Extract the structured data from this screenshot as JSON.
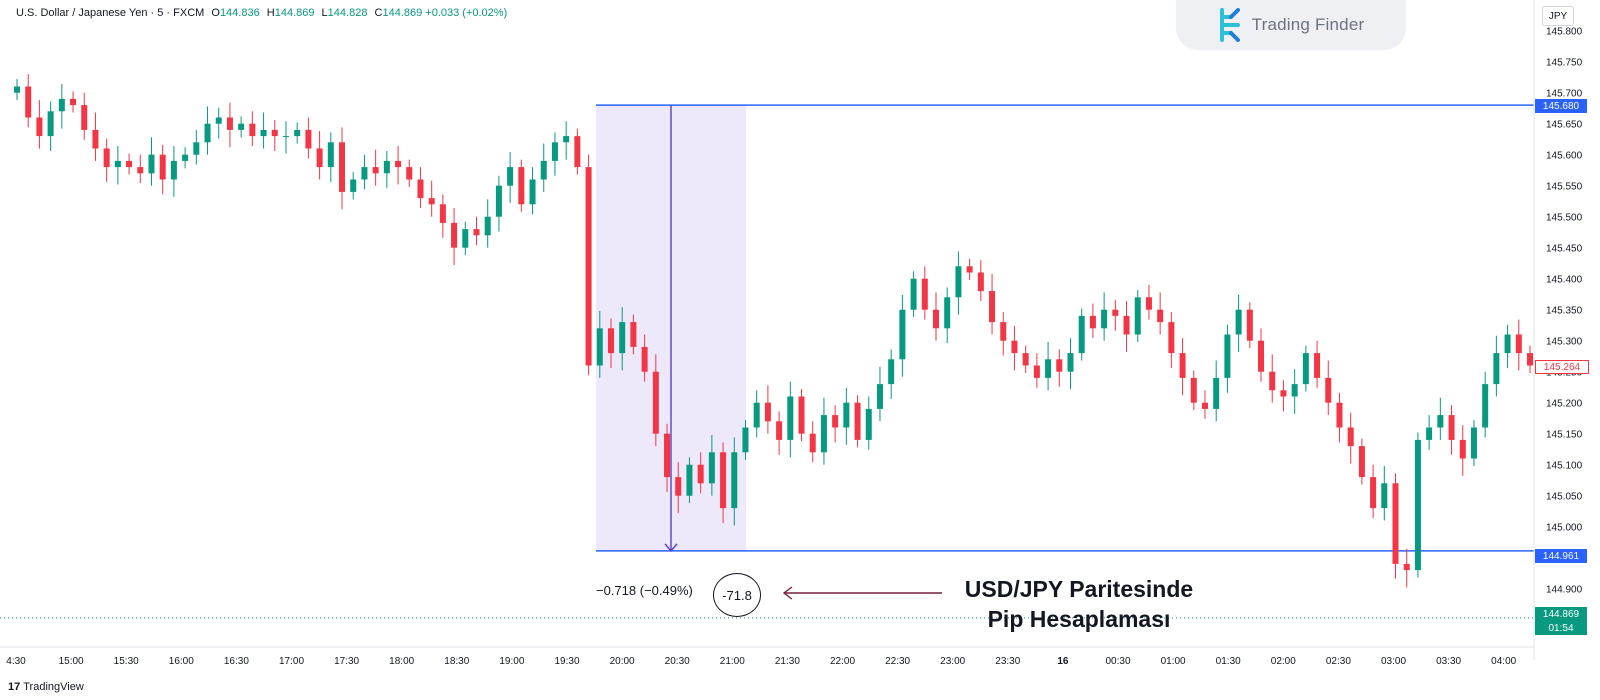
{
  "header": {
    "symbol": "U.S. Dollar / Japanese Yen · 5 · FXCM",
    "open_label": "O",
    "open": "144.836",
    "high_label": "H",
    "high": "144.869",
    "low_label": "L",
    "low": "144.828",
    "close_label": "C",
    "close": "144.869",
    "change": "+0.033 (+0.02%)"
  },
  "brand": {
    "name": "Trading Finder",
    "footer": "TradingView",
    "footer_mark": "17"
  },
  "currency_badge": "JPY",
  "measure": {
    "text": "−0.718 (−0.49%)",
    "pips": "-71.8"
  },
  "caption": {
    "line1": "USD/JPY Paritesinde",
    "line2": "Pip Hesaplaması"
  },
  "price_tags": {
    "top_line": "145.680",
    "bottom_line": "144.961",
    "current": "145.264",
    "last": "144.869",
    "countdown": "01:54"
  },
  "colors": {
    "up": "#089981",
    "down": "#f23645",
    "line": "#2962ff",
    "range_fill": "#ede9fb",
    "range_arrow": "#5b3fc4",
    "annotation_arrow": "#7a1f3d"
  },
  "chart_data": {
    "type": "candlestick",
    "title": "",
    "x_ticks": [
      "4:30",
      "15:00",
      "15:30",
      "16:00",
      "16:30",
      "17:00",
      "17:30",
      "18:00",
      "18:30",
      "19:00",
      "19:30",
      "20:00",
      "20:30",
      "21:00",
      "21:30",
      "22:00",
      "22:30",
      "23:00",
      "23:30",
      "16",
      "00:30",
      "01:00",
      "01:30",
      "02:00",
      "02:30",
      "03:00",
      "03:30",
      "04:00"
    ],
    "y_ticks": [
      "145.800",
      "145.750",
      "145.700",
      "145.650",
      "145.600",
      "145.550",
      "145.500",
      "145.450",
      "145.400",
      "145.350",
      "145.300",
      "145.250",
      "145.200",
      "145.150",
      "145.100",
      "145.050",
      "145.000",
      "144.950",
      "144.900"
    ],
    "ylim": [
      144.88,
      145.82
    ],
    "horizontal_lines": [
      145.68,
      144.961
    ],
    "measure_range": {
      "from": 145.68,
      "to": 144.961,
      "change": -0.718,
      "percent": -0.49,
      "pips": -71.8
    },
    "closes": [
      145.71,
      145.66,
      145.63,
      145.67,
      145.69,
      145.68,
      145.64,
      145.61,
      145.58,
      145.59,
      145.58,
      145.57,
      145.6,
      145.56,
      145.59,
      145.6,
      145.62,
      145.65,
      145.66,
      145.64,
      145.65,
      145.63,
      145.64,
      145.63,
      145.63,
      145.64,
      145.61,
      145.58,
      145.62,
      145.54,
      145.56,
      145.58,
      145.57,
      145.59,
      145.58,
      145.56,
      145.53,
      145.52,
      145.49,
      145.45,
      145.48,
      145.47,
      145.5,
      145.55,
      145.58,
      145.52,
      145.56,
      145.59,
      145.62,
      145.63,
      145.58,
      145.26,
      145.32,
      145.28,
      145.33,
      145.29,
      145.25,
      145.15,
      145.08,
      145.05,
      145.1,
      145.07,
      145.12,
      145.03,
      145.12,
      145.16,
      145.2,
      145.17,
      145.14,
      145.21,
      145.15,
      145.12,
      145.18,
      145.16,
      145.2,
      145.14,
      145.19,
      145.23,
      145.27,
      145.35,
      145.4,
      145.35,
      145.32,
      145.37,
      145.42,
      145.41,
      145.38,
      145.33,
      145.3,
      145.28,
      145.26,
      145.24,
      145.27,
      145.25,
      145.28,
      145.34,
      145.32,
      145.35,
      145.34,
      145.31,
      145.37,
      145.35,
      145.33,
      145.28,
      145.24,
      145.2,
      145.19,
      145.24,
      145.31,
      145.35,
      145.3,
      145.25,
      145.22,
      145.21,
      145.23,
      145.28,
      145.24,
      145.2,
      145.16,
      145.13,
      145.08,
      145.03,
      145.07,
      144.94,
      144.93,
      145.14,
      145.16,
      145.18,
      145.14,
      145.11,
      145.16,
      145.23,
      145.28,
      145.31,
      145.28,
      145.26
    ]
  }
}
